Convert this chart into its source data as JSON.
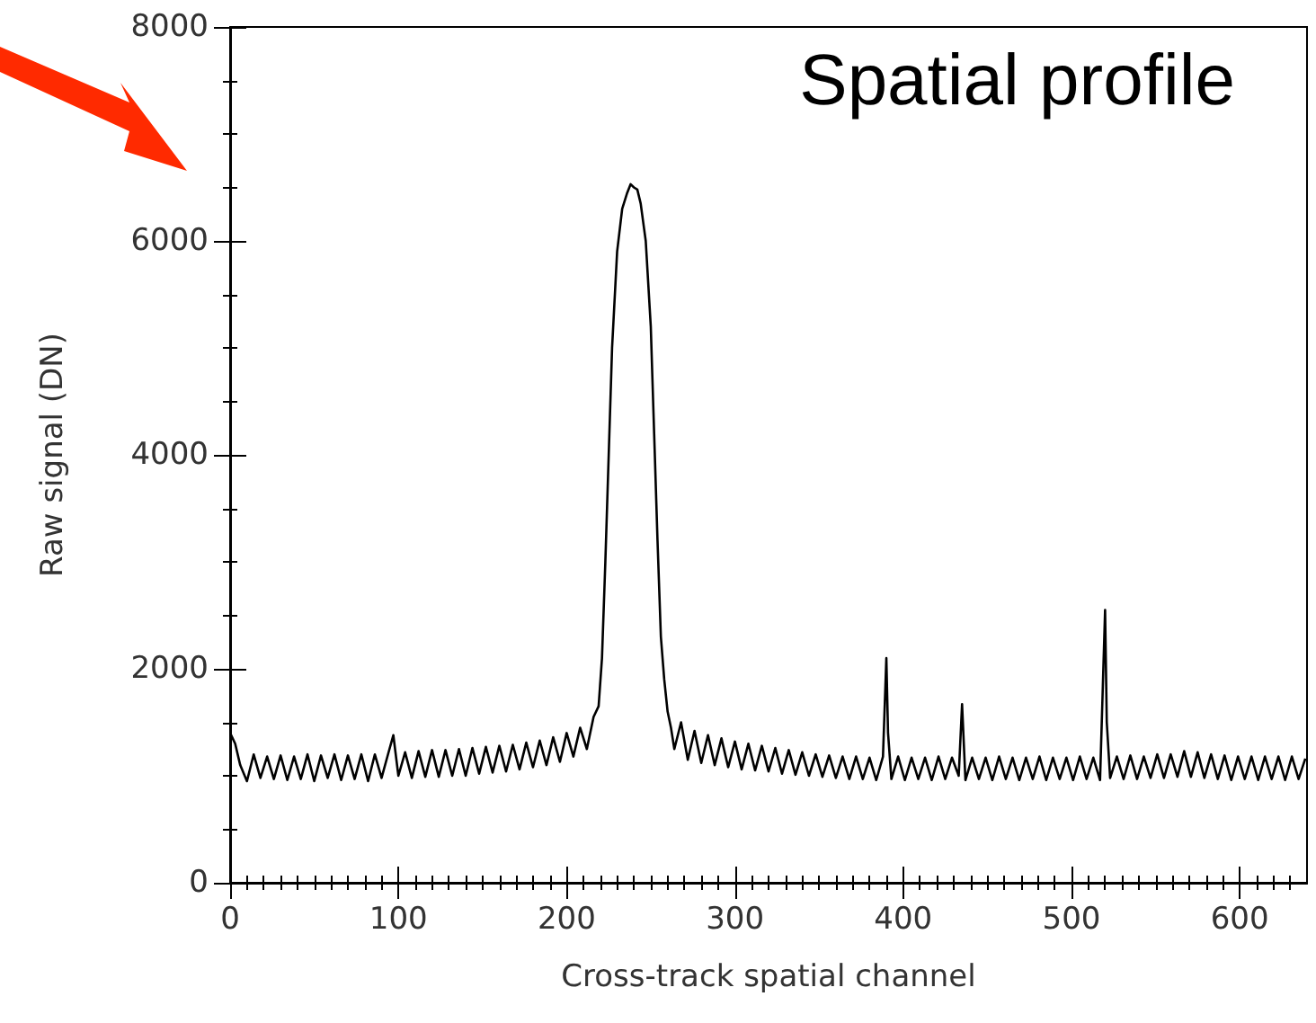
{
  "chart_data": {
    "type": "line",
    "title": "Spatial profile",
    "xlabel": "Cross-track spatial channel",
    "ylabel": "Raw signal (DN)",
    "xlim": [
      0,
      640
    ],
    "xticks": [
      0,
      100,
      200,
      300,
      400,
      500,
      600
    ],
    "ylim": [
      0,
      8000
    ],
    "yticks": [
      0,
      2000,
      4000,
      6000,
      8000
    ],
    "marker": "none",
    "line_style": "solid",
    "series": [
      {
        "color": "#000000",
        "x": [
          0,
          3,
          6,
          10,
          14,
          18,
          22,
          26,
          30,
          34,
          38,
          42,
          46,
          50,
          54,
          58,
          62,
          66,
          70,
          74,
          78,
          82,
          86,
          90,
          94,
          97,
          100,
          104,
          108,
          112,
          116,
          120,
          124,
          128,
          132,
          136,
          140,
          144,
          148,
          152,
          156,
          160,
          164,
          168,
          172,
          176,
          180,
          184,
          188,
          192,
          196,
          200,
          204,
          208,
          212,
          216,
          219,
          221,
          223,
          225,
          227,
          230,
          233,
          236,
          238,
          240,
          242,
          244,
          247,
          250,
          252,
          254,
          256,
          258,
          260,
          262,
          264,
          268,
          272,
          276,
          280,
          284,
          288,
          292,
          296,
          300,
          304,
          308,
          312,
          316,
          320,
          324,
          328,
          332,
          336,
          340,
          344,
          348,
          352,
          356,
          360,
          364,
          368,
          372,
          376,
          380,
          384,
          388,
          390,
          391,
          393,
          397,
          401,
          405,
          409,
          413,
          417,
          421,
          425,
          429,
          433,
          435,
          437,
          441,
          445,
          449,
          453,
          457,
          461,
          465,
          469,
          473,
          477,
          481,
          485,
          489,
          493,
          497,
          501,
          505,
          509,
          513,
          517,
          520,
          521,
          523,
          527,
          531,
          535,
          539,
          543,
          547,
          551,
          555,
          559,
          563,
          567,
          571,
          575,
          579,
          583,
          587,
          591,
          595,
          599,
          603,
          607,
          611,
          615,
          619,
          623,
          627,
          631,
          635,
          639
        ],
        "values": [
          1400,
          1300,
          1100,
          950,
          1200,
          980,
          1180,
          970,
          1190,
          960,
          1180,
          970,
          1200,
          950,
          1190,
          980,
          1200,
          960,
          1190,
          970,
          1200,
          950,
          1200,
          980,
          1210,
          1380,
          1000,
          1220,
          980,
          1230,
          990,
          1240,
          990,
          1240,
          1000,
          1250,
          1000,
          1260,
          1020,
          1270,
          1030,
          1280,
          1040,
          1290,
          1060,
          1310,
          1080,
          1330,
          1100,
          1360,
          1130,
          1400,
          1180,
          1450,
          1250,
          1550,
          1650,
          2100,
          3000,
          4000,
          5000,
          5900,
          6300,
          6450,
          6530,
          6500,
          6480,
          6350,
          6000,
          5200,
          4200,
          3200,
          2300,
          1900,
          1600,
          1450,
          1250,
          1500,
          1150,
          1420,
          1120,
          1380,
          1100,
          1350,
          1080,
          1320,
          1060,
          1300,
          1050,
          1280,
          1040,
          1260,
          1020,
          1240,
          1010,
          1220,
          1000,
          1200,
          990,
          1190,
          980,
          1180,
          970,
          1180,
          970,
          1170,
          960,
          1180,
          2100,
          1400,
          970,
          1180,
          960,
          1170,
          970,
          1170,
          960,
          1180,
          970,
          1170,
          1000,
          1670,
          960,
          1170,
          970,
          1170,
          960,
          1180,
          970,
          1170,
          960,
          1170,
          970,
          1180,
          960,
          1170,
          970,
          1170,
          960,
          1180,
          970,
          1170,
          960,
          2550,
          1500,
          980,
          1180,
          970,
          1190,
          970,
          1180,
          980,
          1200,
          980,
          1200,
          990,
          1230,
          990,
          1220,
          980,
          1200,
          970,
          1190,
          960,
          1180,
          970,
          1180,
          960,
          1180,
          970,
          1180,
          960,
          1180,
          970,
          1160
        ]
      }
    ]
  }
}
